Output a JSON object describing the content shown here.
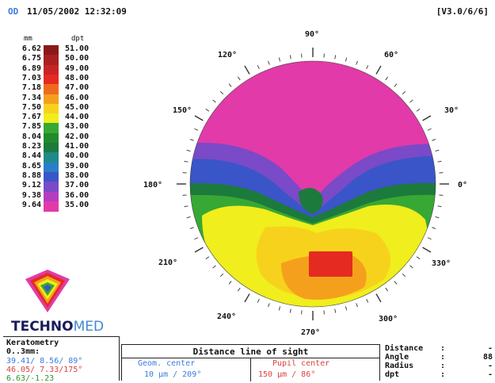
{
  "header": {
    "eye": "OD",
    "datetime": "11/05/2002  12:32:09",
    "version": "[V3.0/6/6]"
  },
  "scale": {
    "mm_header": "mm",
    "dpt_header": "dpt",
    "rows": [
      {
        "mm": "6.62",
        "dpt": "51.00",
        "color": "#8a1a1a"
      },
      {
        "mm": "6.75",
        "dpt": "50.00",
        "color": "#a82020"
      },
      {
        "mm": "6.89",
        "dpt": "49.00",
        "color": "#c82424"
      },
      {
        "mm": "7.03",
        "dpt": "48.00",
        "color": "#e52a22"
      },
      {
        "mm": "7.18",
        "dpt": "47.00",
        "color": "#ef6a1e"
      },
      {
        "mm": "7.34",
        "dpt": "46.00",
        "color": "#f5a01c"
      },
      {
        "mm": "7.50",
        "dpt": "45.00",
        "color": "#f7d21c"
      },
      {
        "mm": "7.67",
        "dpt": "44.00",
        "color": "#f0ee1c"
      },
      {
        "mm": "7.85",
        "dpt": "43.00",
        "color": "#37a834"
      },
      {
        "mm": "8.04",
        "dpt": "42.00",
        "color": "#238a2c"
      },
      {
        "mm": "8.23",
        "dpt": "41.00",
        "color": "#1c7a3c"
      },
      {
        "mm": "8.44",
        "dpt": "40.00",
        "color": "#1f8a8a"
      },
      {
        "mm": "8.65",
        "dpt": "39.00",
        "color": "#2a7ec8"
      },
      {
        "mm": "8.88",
        "dpt": "38.00",
        "color": "#3a55c8"
      },
      {
        "mm": "9.12",
        "dpt": "37.00",
        "color": "#7a4ac8"
      },
      {
        "mm": "9.38",
        "dpt": "36.00",
        "color": "#b43cc0"
      },
      {
        "mm": "9.64",
        "dpt": "35.00",
        "color": "#e23aa8"
      }
    ]
  },
  "map": {
    "angle_labels": [
      "90°",
      "60°",
      "30°",
      "0°",
      "330°",
      "300°",
      "270°",
      "240°",
      "210°",
      "180°",
      "150°",
      "120°"
    ],
    "colors": {
      "magenta": "#e23aa8",
      "violet": "#7a4ac8",
      "blue": "#3a55c8",
      "green": "#37a834",
      "dark_green": "#1c7a3c",
      "yellow": "#f0ee1c",
      "gold": "#f7d21c",
      "orange": "#f5a01c",
      "red": "#e52a22"
    }
  },
  "logo": {
    "brand_part1": "TECHNO",
    "brand_part2": "MED"
  },
  "keratometry": {
    "title": "Keratometry",
    "range": "0..3mm:",
    "line1": "39.41/ 8.56/ 89°",
    "line2": "46.05/ 7.33/175°",
    "line3": "6.63/-1.23",
    "line1_color": "#3a7be0",
    "line2_color": "#e04040",
    "line3_color": "#2a9a2a"
  },
  "distance": {
    "title": "Distance line of sight",
    "geom_label": "Geom. center",
    "pupil_label": "Pupil center",
    "geom_value": "10 µm / 209°",
    "pupil_value": "150 µm /  86°",
    "geom_color": "#3a7be0",
    "pupil_color": "#e04040"
  },
  "info": {
    "distance_label": "Distance",
    "distance_value": "-",
    "angle_label": "Angle",
    "angle_value": "88",
    "radius_label": "Radius",
    "radius_value": "-",
    "dpt_label": "dpt",
    "dpt_value": "-"
  }
}
